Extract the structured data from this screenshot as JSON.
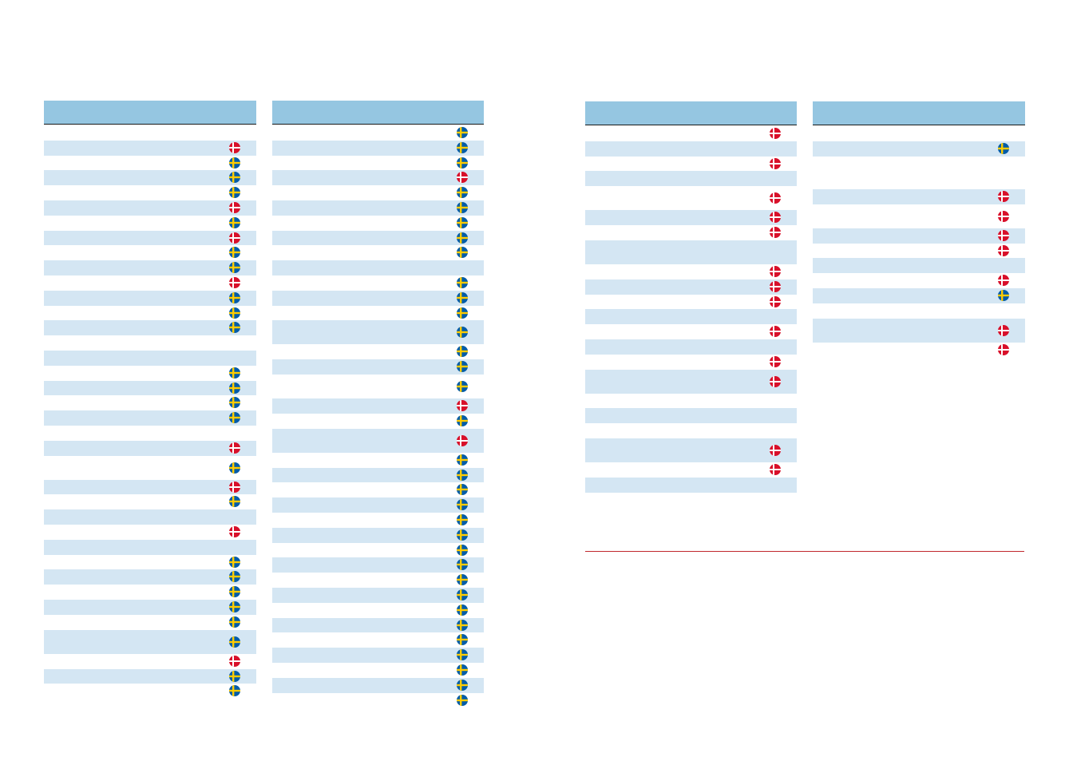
{
  "colors": {
    "header": "#95c6e1",
    "shaded_row": "#d4e6f3",
    "divider": "#c0282d",
    "flag_se_blue": "#005ca8",
    "flag_se_yellow": "#fecc02",
    "flag_dk_red": "#d8102a"
  },
  "flag_icons": {
    "se": "sweden-flag-icon",
    "dk": "denmark-flag-icon"
  },
  "tables": [
    {
      "rows": [
        {
          "h": 1,
          "s": 0,
          "f": ""
        },
        {
          "h": 1,
          "s": 1,
          "f": "dk"
        },
        {
          "h": 1,
          "s": 0,
          "f": "se"
        },
        {
          "h": 1,
          "s": 1,
          "f": "se"
        },
        {
          "h": 1,
          "s": 0,
          "f": "se"
        },
        {
          "h": 1,
          "s": 1,
          "f": "dk"
        },
        {
          "h": 1,
          "s": 0,
          "f": "se"
        },
        {
          "h": 1,
          "s": 1,
          "f": "dk"
        },
        {
          "h": 1,
          "s": 0,
          "f": "se"
        },
        {
          "h": 1,
          "s": 1,
          "f": "se"
        },
        {
          "h": 1,
          "s": 0,
          "f": "dk"
        },
        {
          "h": 1,
          "s": 1,
          "f": "se"
        },
        {
          "h": 1,
          "s": 0,
          "f": "se"
        },
        {
          "h": 1,
          "s": 1,
          "f": "se"
        },
        {
          "h": 1,
          "s": 0,
          "f": ""
        },
        {
          "h": 1,
          "s": 1,
          "f": ""
        },
        {
          "h": 1,
          "s": 0,
          "f": "se"
        },
        {
          "h": 1,
          "s": 1,
          "f": "se"
        },
        {
          "h": 1,
          "s": 0,
          "f": "se"
        },
        {
          "h": 1,
          "s": 1,
          "f": "se"
        },
        {
          "h": 1,
          "s": 0,
          "f": ""
        },
        {
          "h": 1,
          "s": 1,
          "f": "dk"
        },
        {
          "h": 1.6,
          "s": 0,
          "f": "se"
        },
        {
          "h": 1,
          "s": 1,
          "f": "dk"
        },
        {
          "h": 1,
          "s": 0,
          "f": "se"
        },
        {
          "h": 1,
          "s": 1,
          "f": ""
        },
        {
          "h": 1,
          "s": 0,
          "f": "dk"
        },
        {
          "h": 1,
          "s": 1,
          "f": ""
        },
        {
          "h": 1,
          "s": 0,
          "f": "se"
        },
        {
          "h": 1,
          "s": 1,
          "f": "se"
        },
        {
          "h": 1,
          "s": 0,
          "f": "se"
        },
        {
          "h": 1,
          "s": 1,
          "f": "se"
        },
        {
          "h": 1,
          "s": 0,
          "f": "se"
        },
        {
          "h": 1.6,
          "s": 1,
          "f": "se"
        },
        {
          "h": 1,
          "s": 0,
          "f": "dk"
        },
        {
          "h": 1,
          "s": 1,
          "f": "se"
        },
        {
          "h": 1,
          "s": 0,
          "f": "se"
        }
      ]
    },
    {
      "rows": [
        {
          "h": 1,
          "s": 0,
          "f": "se"
        },
        {
          "h": 1,
          "s": 1,
          "f": "se"
        },
        {
          "h": 1,
          "s": 0,
          "f": "se"
        },
        {
          "h": 1,
          "s": 1,
          "f": "dk"
        },
        {
          "h": 1,
          "s": 0,
          "f": "se"
        },
        {
          "h": 1,
          "s": 1,
          "f": "se"
        },
        {
          "h": 1,
          "s": 0,
          "f": "se"
        },
        {
          "h": 1,
          "s": 1,
          "f": "se"
        },
        {
          "h": 1,
          "s": 0,
          "f": "se"
        },
        {
          "h": 1,
          "s": 1,
          "f": ""
        },
        {
          "h": 1,
          "s": 0,
          "f": "se"
        },
        {
          "h": 1,
          "s": 1,
          "f": "se"
        },
        {
          "h": 1,
          "s": 0,
          "f": "se"
        },
        {
          "h": 1.6,
          "s": 1,
          "f": "se"
        },
        {
          "h": 1,
          "s": 0,
          "f": "se"
        },
        {
          "h": 1,
          "s": 1,
          "f": "se"
        },
        {
          "h": 1.6,
          "s": 0,
          "f": "se"
        },
        {
          "h": 1,
          "s": 1,
          "f": "dk"
        },
        {
          "h": 1,
          "s": 0,
          "f": "se"
        },
        {
          "h": 1.6,
          "s": 1,
          "f": "dk"
        },
        {
          "h": 1,
          "s": 0,
          "f": "se"
        },
        {
          "h": 1,
          "s": 1,
          "f": "se"
        },
        {
          "h": 1,
          "s": 0,
          "f": "se"
        },
        {
          "h": 1,
          "s": 1,
          "f": "se"
        },
        {
          "h": 1,
          "s": 0,
          "f": "se"
        },
        {
          "h": 1,
          "s": 1,
          "f": "se"
        },
        {
          "h": 1,
          "s": 0,
          "f": "se"
        },
        {
          "h": 1,
          "s": 1,
          "f": "se"
        },
        {
          "h": 1,
          "s": 0,
          "f": "se"
        },
        {
          "h": 1,
          "s": 1,
          "f": "se"
        },
        {
          "h": 1,
          "s": 0,
          "f": "se"
        },
        {
          "h": 1,
          "s": 1,
          "f": "se"
        },
        {
          "h": 1,
          "s": 0,
          "f": "se"
        },
        {
          "h": 1,
          "s": 1,
          "f": "se"
        },
        {
          "h": 1,
          "s": 0,
          "f": "se"
        },
        {
          "h": 1,
          "s": 1,
          "f": "se"
        },
        {
          "h": 1,
          "s": 0,
          "f": "se"
        }
      ]
    },
    {
      "rows": [
        {
          "h": 1,
          "s": 0,
          "f": "dk"
        },
        {
          "h": 1,
          "s": 1,
          "f": ""
        },
        {
          "h": 1,
          "s": 0,
          "f": "dk"
        },
        {
          "h": 1,
          "s": 1,
          "f": ""
        },
        {
          "h": 1.6,
          "s": 0,
          "f": "dk"
        },
        {
          "h": 1,
          "s": 1,
          "f": "dk"
        },
        {
          "h": 1,
          "s": 0,
          "f": "dk"
        },
        {
          "h": 1.6,
          "s": 1,
          "f": ""
        },
        {
          "h": 1,
          "s": 0,
          "f": "dk"
        },
        {
          "h": 1,
          "s": 1,
          "f": "dk"
        },
        {
          "h": 1,
          "s": 0,
          "f": "dk"
        },
        {
          "h": 1,
          "s": 1,
          "f": ""
        },
        {
          "h": 1,
          "s": 0,
          "f": "dk"
        },
        {
          "h": 1,
          "s": 1,
          "f": ""
        },
        {
          "h": 1,
          "s": 0,
          "f": "dk"
        },
        {
          "h": 1.6,
          "s": 1,
          "f": "dk"
        },
        {
          "h": 1,
          "s": 0,
          "f": ""
        },
        {
          "h": 1,
          "s": 1,
          "f": ""
        },
        {
          "h": 1,
          "s": 0,
          "f": ""
        },
        {
          "h": 1.6,
          "s": 1,
          "f": "dk"
        },
        {
          "h": 1,
          "s": 0,
          "f": "dk"
        },
        {
          "h": 1,
          "s": 1,
          "f": ""
        }
      ]
    },
    {
      "rows": [
        {
          "h": 1,
          "s": 0,
          "f": ""
        },
        {
          "h": 1,
          "s": 1,
          "f": "se"
        },
        {
          "h": 2.2,
          "s": 0,
          "f": ""
        },
        {
          "h": 1,
          "s": 1,
          "f": "dk"
        },
        {
          "h": 1.6,
          "s": 0,
          "f": "dk"
        },
        {
          "h": 1,
          "s": 1,
          "f": "dk"
        },
        {
          "h": 1,
          "s": 0,
          "f": "dk"
        },
        {
          "h": 1,
          "s": 1,
          "f": ""
        },
        {
          "h": 1,
          "s": 0,
          "f": "dk"
        },
        {
          "h": 1,
          "s": 1,
          "f": "se"
        },
        {
          "h": 1,
          "s": 0,
          "f": ""
        },
        {
          "h": 1.6,
          "s": 1,
          "f": "dk"
        },
        {
          "h": 1,
          "s": 0,
          "f": "dk"
        }
      ]
    }
  ]
}
